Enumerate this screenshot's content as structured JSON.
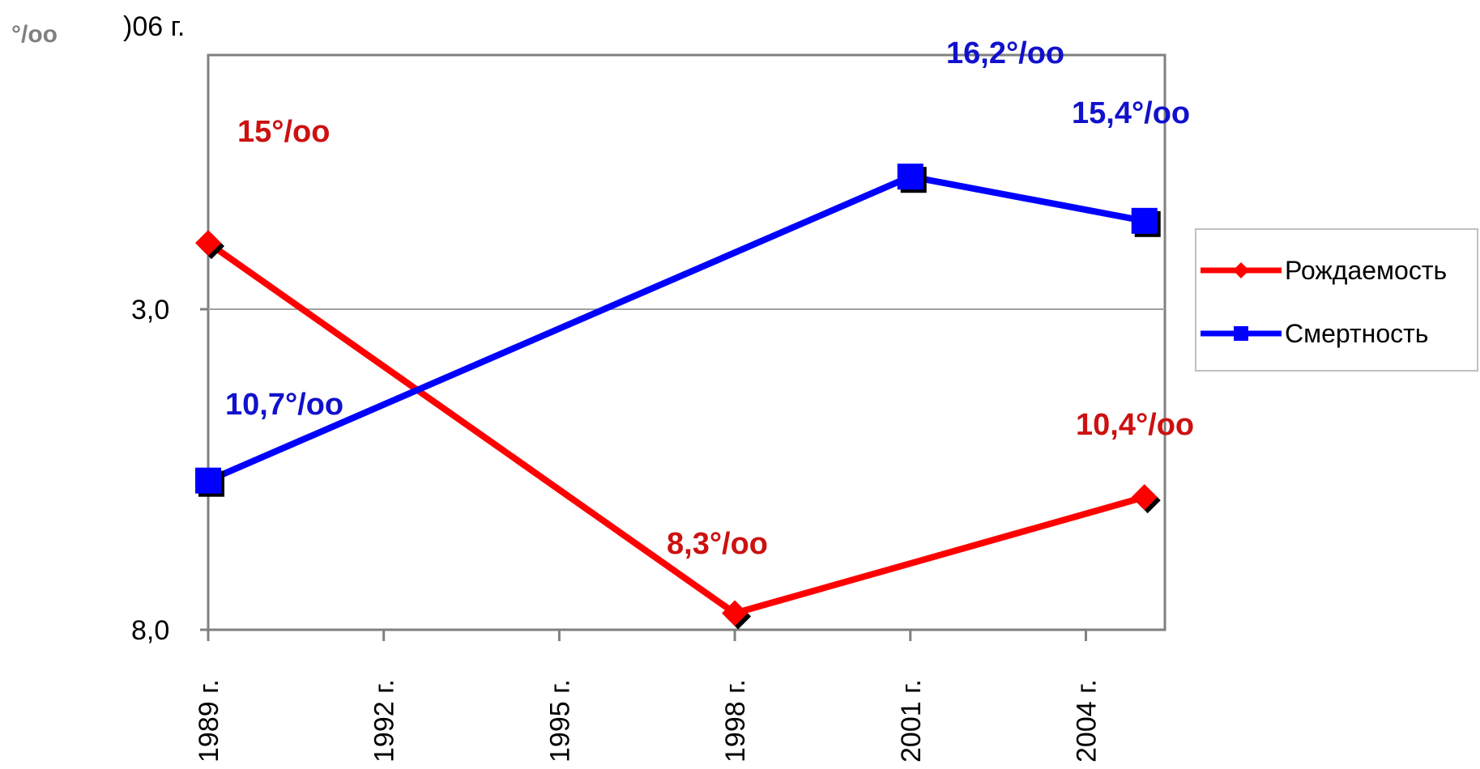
{
  "chart_data": {
    "type": "line",
    "title_fragment": ")06 г.",
    "unit_label": "°/oo",
    "categories": [
      "1989 г.",
      "1992 г.",
      "1995 г.",
      "1998 г.",
      "2001 г.",
      "2004 г."
    ],
    "y_tick_labels": [
      "3,0",
      "8,0"
    ],
    "grid": true,
    "legend_position": "right",
    "series": [
      {
        "name": "Рождаемость",
        "color": "#ff0000",
        "marker": "diamond",
        "points": [
          {
            "x": "1989 г.",
            "y": 15.0
          },
          {
            "x": "1998 г.",
            "y": 8.3
          },
          {
            "x": "2005 г.",
            "y": 10.4
          }
        ],
        "labels": [
          "15°/oo",
          "8,3°/oo",
          "10,4°/oo"
        ],
        "label_color": "#cc1111"
      },
      {
        "name": "Смертность",
        "color": "#0000ff",
        "marker": "square",
        "points": [
          {
            "x": "1989 г.",
            "y": 10.7
          },
          {
            "x": "2001 г.",
            "y": 16.2
          },
          {
            "x": "2005 г.",
            "y": 15.4
          }
        ],
        "labels": [
          "10,7°/oo",
          "16,2°/oo",
          "15,4°/oo"
        ],
        "label_color": "#1111cc"
      }
    ]
  }
}
